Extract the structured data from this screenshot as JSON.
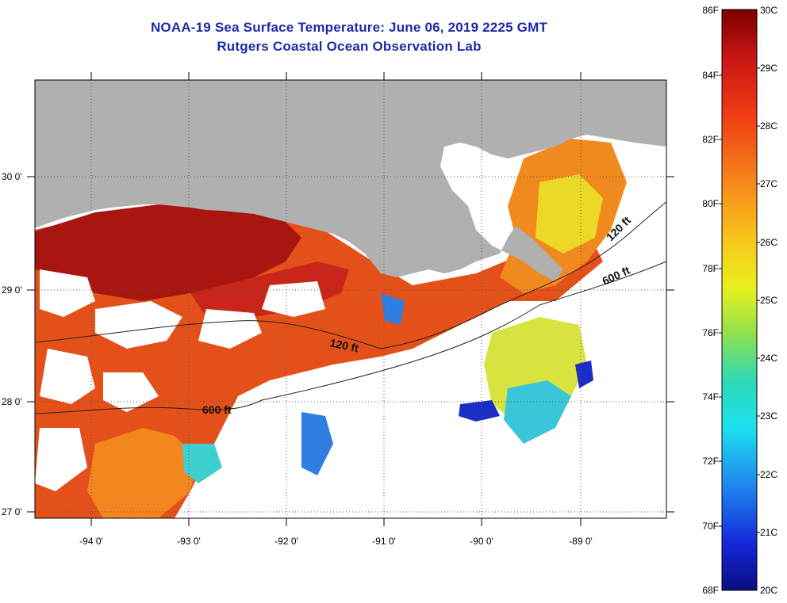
{
  "title": {
    "line1": "NOAA-19 Sea Surface Temperature:  June 06, 2019 2225 GMT",
    "line2": "Rutgers Coastal Ocean Observation Lab"
  },
  "map": {
    "latitude_labels": [
      "30 0'",
      "29 0'",
      "28 0'",
      "27 0'"
    ],
    "longitude_labels": [
      "-94 0'",
      "-93 0'",
      "-92 0'",
      "-91 0'",
      "-90 0'",
      "-89 0'"
    ],
    "contour_labels": {
      "west_120": "120 ft",
      "west_600": "600 ft",
      "east_120": "120 ft",
      "east_600": "600 ft"
    },
    "colors": {
      "land": "#b0b0b0",
      "cloud": "#ffffff",
      "warm_coast": "#a8160f",
      "warm_open": "#e4501a",
      "orange": "#f3861f",
      "yellow": "#ecd827",
      "cyan": "#39c6d8",
      "blue": "#1a2ec3"
    }
  },
  "colorbar": {
    "fahrenheit_labels": [
      "86F",
      "84F",
      "82F",
      "80F",
      "78F",
      "76F",
      "74F",
      "72F",
      "70F",
      "68F"
    ],
    "celsius_labels": [
      "30C",
      "29C",
      "28C",
      "27C",
      "26C",
      "25C",
      "24C",
      "23C",
      "22C",
      "21C",
      "20C"
    ]
  }
}
